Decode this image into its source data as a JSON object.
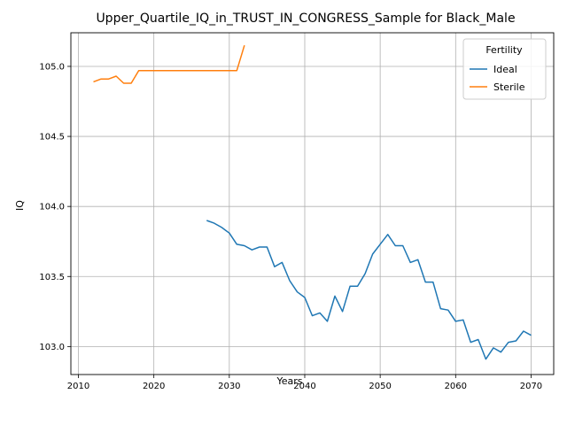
{
  "chart_data": {
    "type": "line",
    "title": "Upper_Quartile_IQ_in_TRUST_IN_CONGRESS_Sample for Black_Male",
    "xlabel": "Years",
    "ylabel": "IQ",
    "xlim": [
      2009,
      2073
    ],
    "ylim": [
      102.8,
      105.24
    ],
    "xticks": [
      2010,
      2020,
      2030,
      2040,
      2050,
      2060,
      2070
    ],
    "yticks": [
      103.0,
      103.5,
      104.0,
      104.5,
      105.0
    ],
    "xtick_labels": [
      "2010",
      "2020",
      "2030",
      "2040",
      "2050",
      "2060",
      "2070"
    ],
    "ytick_labels": [
      "103.0",
      "103.5",
      "104.0",
      "104.5",
      "105.0"
    ],
    "grid": true,
    "legend": {
      "title": "Fertility",
      "position": "top-right"
    },
    "series": [
      {
        "name": "Ideal",
        "color": "#1f77b4",
        "x": [
          2027,
          2028,
          2029,
          2030,
          2031,
          2032,
          2033,
          2034,
          2035,
          2036,
          2037,
          2038,
          2039,
          2040,
          2041,
          2042,
          2043,
          2044,
          2045,
          2046,
          2047,
          2048,
          2049,
          2050,
          2051,
          2052,
          2053,
          2054,
          2055,
          2056,
          2057,
          2058,
          2059,
          2060,
          2061,
          2062,
          2063,
          2064,
          2065,
          2066,
          2067,
          2068,
          2069,
          2070
        ],
        "y": [
          103.9,
          103.88,
          103.85,
          103.81,
          103.73,
          103.72,
          103.69,
          103.71,
          103.71,
          103.57,
          103.6,
          103.47,
          103.39,
          103.35,
          103.22,
          103.24,
          103.18,
          103.36,
          103.25,
          103.43,
          103.43,
          103.52,
          103.66,
          103.73,
          103.8,
          103.72,
          103.72,
          103.6,
          103.62,
          103.46,
          103.46,
          103.27,
          103.26,
          103.18,
          103.19,
          103.03,
          103.05,
          102.91,
          102.99,
          102.96,
          103.03,
          103.04,
          103.11,
          103.08
        ]
      },
      {
        "name": "Sterile",
        "color": "#ff7f0e",
        "x": [
          2012,
          2013,
          2014,
          2015,
          2016,
          2017,
          2018,
          2019,
          2020,
          2021,
          2022,
          2023,
          2024,
          2025,
          2026,
          2027,
          2028,
          2029,
          2030,
          2031,
          2032
        ],
        "y": [
          104.89,
          104.91,
          104.91,
          104.93,
          104.88,
          104.88,
          104.97,
          104.97,
          104.97,
          104.97,
          104.97,
          104.97,
          104.97,
          104.97,
          104.97,
          104.97,
          104.97,
          104.97,
          104.97,
          104.97,
          105.15
        ]
      }
    ]
  }
}
